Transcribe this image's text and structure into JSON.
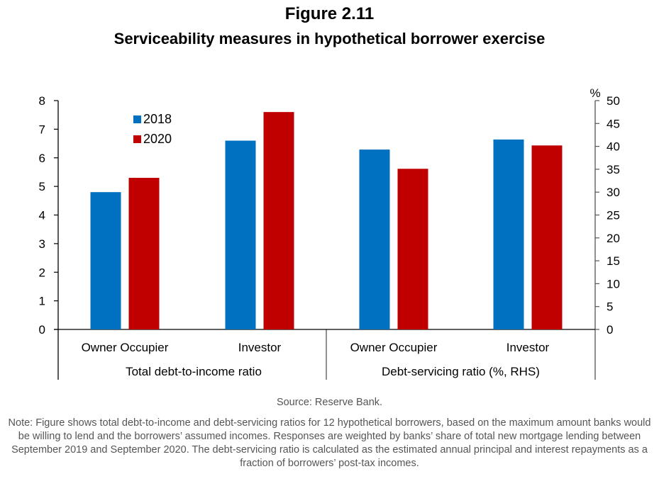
{
  "figure": {
    "number": "Figure 2.11",
    "title": "Serviceability measures in hypothetical borrower exercise"
  },
  "chart_data": {
    "type": "bar",
    "title": "Serviceability measures in hypothetical borrower exercise",
    "groups": [
      {
        "name": "Total debt-to-income ratio",
        "axis": "left",
        "categories": [
          "Owner Occupier",
          "Investor"
        ],
        "series": [
          {
            "name": "2018",
            "values": [
              4.8,
              6.6
            ]
          },
          {
            "name": "2020",
            "values": [
              5.3,
              7.6
            ]
          }
        ]
      },
      {
        "name": "Debt-servicing ratio (%, RHS)",
        "axis": "right",
        "categories": [
          "Owner Occupier",
          "Investor"
        ],
        "series": [
          {
            "name": "2018",
            "values": [
              39.3,
              41.5
            ]
          },
          {
            "name": "2020",
            "values": [
              35.1,
              40.2
            ]
          }
        ]
      }
    ],
    "left_axis": {
      "min": 0,
      "max": 8,
      "step": 1,
      "ticks": [
        "0",
        "1",
        "2",
        "3",
        "4",
        "5",
        "6",
        "7",
        "8"
      ],
      "label": ""
    },
    "right_axis": {
      "min": 0,
      "max": 50,
      "step": 5,
      "ticks": [
        "0",
        "5",
        "10",
        "15",
        "20",
        "25",
        "30",
        "35",
        "40",
        "45",
        "50"
      ],
      "label": "%"
    },
    "legend": {
      "position": "top-left",
      "entries": [
        {
          "name": "2018",
          "color": "#0070C0"
        },
        {
          "name": "2020",
          "color": "#C00000"
        }
      ]
    },
    "colors": {
      "2018": "#0070C0",
      "2020": "#C00000"
    },
    "grid": false
  },
  "source": "Source: Reserve Bank.",
  "note": "Note: Figure shows total debt-to-income and debt-servicing ratios for 12 hypothetical borrowers, based on the maximum amount banks would be willing to lend and the borrowers’ assumed incomes. Responses are weighted by banks’ share of total new mortgage lending between September 2019 and September 2020. The debt-servicing ratio is calculated as the estimated annual principal and interest repayments as a fraction of borrowers’ post-tax incomes."
}
